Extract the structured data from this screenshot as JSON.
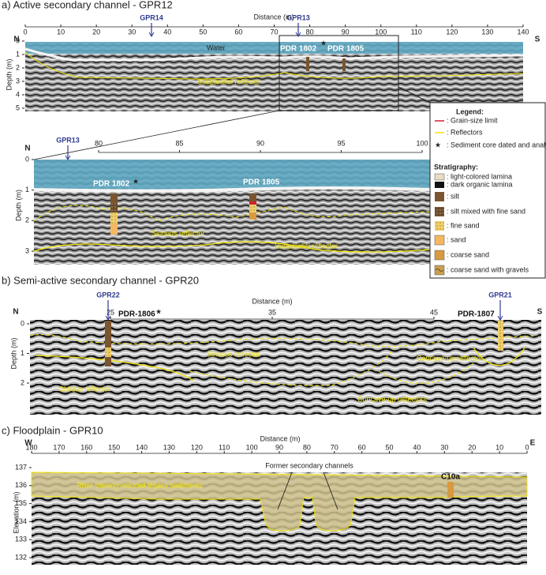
{
  "panel_a": {
    "title": "a) Active secondary channel - GPR12",
    "x_label": "Distance (m)",
    "x_ticks": [
      0,
      10,
      20,
      30,
      40,
      50,
      60,
      70,
      80,
      90,
      100,
      110,
      120,
      130,
      140
    ],
    "y_label": "Depth (m)",
    "y_ticks": [
      0,
      1,
      2,
      3,
      4,
      5
    ],
    "left": "N",
    "right": "S",
    "profiles": [
      "GPR14",
      "GPR13"
    ],
    "water": "Water",
    "cores": [
      "PDR 1802",
      "PDR 1805"
    ],
    "reflector": "Subparallel reflector"
  },
  "zoom": {
    "x_ticks": [
      80,
      85,
      90,
      95,
      100
    ],
    "y_label": "Depth (m)",
    "y_ticks": [
      0,
      1,
      2,
      3
    ],
    "left": "N",
    "profile": "GPR13",
    "cores": [
      "PDR 1802",
      "PDR 1805"
    ],
    "reflectors": [
      "Sinuous reflector",
      "Subparallel reflector"
    ]
  },
  "legend": {
    "title": "Legend:",
    "items": [
      ": Grain-size limit",
      ": Reflectors",
      ": Sediment core dated and analysed"
    ],
    "strat_title": "Stratigraphy:",
    "strat": [
      ": light-colored lamina",
      ": dark organic lamina",
      ": silt",
      ": silt mixed with fine sand",
      ": fine sand",
      ": sand",
      ": coarse sand",
      ": coarse sand with gravels"
    ]
  },
  "panel_b": {
    "title": "b) Semi-active secondary channel - GPR20",
    "x_label": "Distance (m)",
    "x_ticks": [
      25,
      35,
      45
    ],
    "y_label": "Depth (m)",
    "y_ticks": [
      0,
      1,
      2
    ],
    "left": "N",
    "right": "S",
    "profiles": [
      "GPR22",
      "GPR21"
    ],
    "cores": [
      "PDR-1806",
      "PDR-1807"
    ],
    "reflectors": [
      "Sinuous reflector",
      "Concave-up reflector",
      "Oblique reflector",
      "Concave-up reflectors"
    ]
  },
  "panel_c": {
    "title": "c) Floodplain - GPR10",
    "x_label": "Distance (m)",
    "x_ticks": [
      180,
      170,
      160,
      150,
      140,
      130,
      120,
      110,
      100,
      90,
      80,
      70,
      60,
      50,
      40,
      30,
      20,
      10,
      0
    ],
    "y_label": "Elevation (m)",
    "y_ticks": [
      137,
      136,
      135,
      134,
      133,
      132
    ],
    "left": "W",
    "right": "E",
    "sediments": "River training-induced legacy sediments",
    "channels": "Former secondary channels",
    "core": "C10a"
  }
}
